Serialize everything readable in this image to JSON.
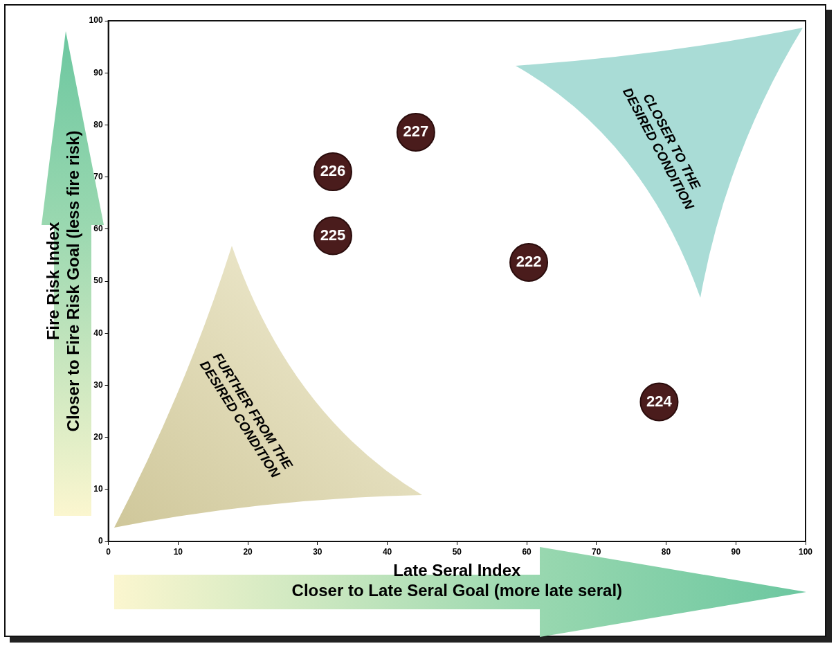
{
  "chart_data": {
    "type": "scatter",
    "xlabel": "Late Seral Index\nCloser to Late Seral Goal (more late seral)",
    "ylabel": "Fire Risk Index\nCloser to Fire Risk Goal (less fire risk)",
    "xlim": [
      0,
      100
    ],
    "ylim": [
      0,
      100
    ],
    "xticks": [
      0,
      10,
      20,
      30,
      40,
      50,
      60,
      70,
      80,
      90,
      100
    ],
    "yticks": [
      0,
      10,
      20,
      30,
      40,
      50,
      60,
      70,
      80,
      90,
      100
    ],
    "grid": false,
    "legend": false,
    "marker": "circle",
    "annotations": [
      "CLOSER TO THE\nDESIRED CONDITION",
      "FURTHER FROM THE\nDESIRED CONDITION"
    ],
    "series": [
      {
        "name": "226",
        "color": "#4a1c1c",
        "x": [
          32.2
        ],
        "values": [
          71
        ]
      },
      {
        "name": "227",
        "color": "#4a1c1c",
        "x": [
          44.1
        ],
        "values": [
          78.6
        ]
      },
      {
        "name": "225",
        "color": "#4a1c1c",
        "x": [
          32.2
        ],
        "values": [
          58.7
        ]
      },
      {
        "name": "222",
        "color": "#4a1c1c",
        "x": [
          60.3
        ],
        "values": [
          53.6
        ]
      },
      {
        "name": "224",
        "color": "#4a1c1c",
        "x": [
          79
        ],
        "values": [
          26.8
        ]
      }
    ]
  }
}
